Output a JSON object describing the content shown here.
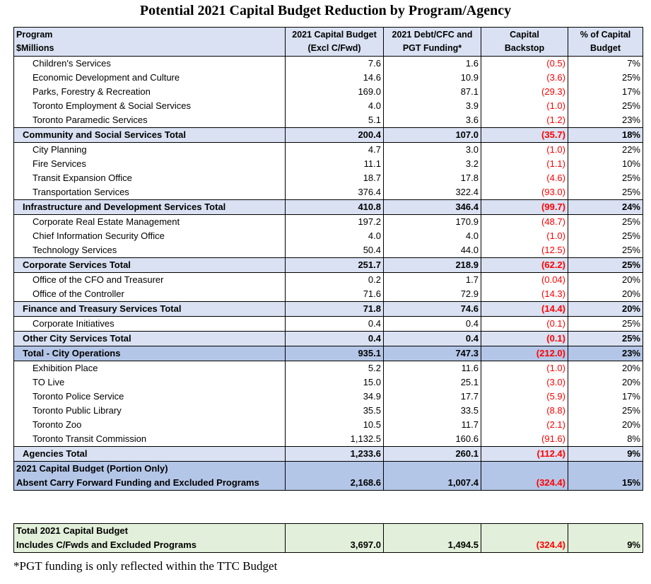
{
  "title": "Potential 2021 Capital Budget Reduction by Program/Agency",
  "headers": {
    "program_l1": "Program",
    "program_l2": "$Millions",
    "budget_l1": "2021 Capital Budget",
    "budget_l2": "(Excl C/Fwd)",
    "debt_l1": "2021 Debt/CFC and",
    "debt_l2": "PGT Funding*",
    "backstop_l1": "Capital",
    "backstop_l2": "Backstop",
    "pct_l1": "% of Capital",
    "pct_l2": "Budget"
  },
  "rows": [
    {
      "type": "item",
      "program": "Children's Services",
      "budget": "7.6",
      "debt": "1.6",
      "backstop": "(0.5)",
      "pct": "7%"
    },
    {
      "type": "item",
      "program": "Economic Development and Culture",
      "budget": "14.6",
      "debt": "10.9",
      "backstop": "(3.6)",
      "pct": "25%"
    },
    {
      "type": "item",
      "program": "Parks, Forestry & Recreation",
      "budget": "169.0",
      "debt": "87.1",
      "backstop": "(29.3)",
      "pct": "17%"
    },
    {
      "type": "item",
      "program": "Toronto Employment & Social Services",
      "budget": "4.0",
      "debt": "3.9",
      "backstop": "(1.0)",
      "pct": "25%"
    },
    {
      "type": "item",
      "program": "Toronto Paramedic Services",
      "budget": "5.1",
      "debt": "3.6",
      "backstop": "(1.2)",
      "pct": "23%"
    },
    {
      "type": "sub",
      "program": "Community and Social Services Total",
      "budget": "200.4",
      "debt": "107.0",
      "backstop": "(35.7)",
      "pct": "18%"
    },
    {
      "type": "item",
      "program": "City Planning",
      "budget": "4.7",
      "debt": "3.0",
      "backstop": "(1.0)",
      "pct": "22%"
    },
    {
      "type": "item",
      "program": "Fire Services",
      "budget": "11.1",
      "debt": "3.2",
      "backstop": "(1.1)",
      "pct": "10%"
    },
    {
      "type": "item",
      "program": "Transit Expansion Office",
      "budget": "18.7",
      "debt": "17.8",
      "backstop": "(4.6)",
      "pct": "25%"
    },
    {
      "type": "item",
      "program": "Transportation Services",
      "budget": "376.4",
      "debt": "322.4",
      "backstop": "(93.0)",
      "pct": "25%"
    },
    {
      "type": "sub",
      "program": "Infrastructure and Development Services Total",
      "budget": "410.8",
      "debt": "346.4",
      "backstop": "(99.7)",
      "pct": "24%"
    },
    {
      "type": "item",
      "program": "Corporate Real Estate Management",
      "budget": "197.2",
      "debt": "170.9",
      "backstop": "(48.7)",
      "pct": "25%"
    },
    {
      "type": "item",
      "program": "Chief Information Security Office",
      "budget": "4.0",
      "debt": "4.0",
      "backstop": "(1.0)",
      "pct": "25%"
    },
    {
      "type": "item",
      "program": "Technology Services",
      "budget": "50.4",
      "debt": "44.0",
      "backstop": "(12.5)",
      "pct": "25%"
    },
    {
      "type": "sub",
      "program": "Corporate Services Total",
      "budget": "251.7",
      "debt": "218.9",
      "backstop": "(62.2)",
      "pct": "25%"
    },
    {
      "type": "item",
      "program": "Office of the CFO and Treasurer",
      "budget": "0.2",
      "debt": "1.7",
      "backstop": "(0.04)",
      "pct": "20%"
    },
    {
      "type": "item",
      "program": "Office of the Controller",
      "budget": "71.6",
      "debt": "72.9",
      "backstop": "(14.3)",
      "pct": "20%"
    },
    {
      "type": "sub",
      "program": "Finance and Treasury Services Total",
      "budget": "71.8",
      "debt": "74.6",
      "backstop": "(14.4)",
      "pct": "20%"
    },
    {
      "type": "item",
      "program": "Corporate Initiatives",
      "budget": "0.4",
      "debt": "0.4",
      "backstop": "(0.1)",
      "pct": "25%"
    },
    {
      "type": "sub",
      "program": "Other City Services Total",
      "budget": "0.4",
      "debt": "0.4",
      "backstop": "(0.1)",
      "pct": "25%"
    },
    {
      "type": "grand",
      "program": "Total - City Operations",
      "budget": "935.1",
      "debt": "747.3",
      "backstop": "(212.0)",
      "pct": "23%"
    },
    {
      "type": "item",
      "program": "Exhibition Place",
      "budget": "5.2",
      "debt": "11.6",
      "backstop": "(1.0)",
      "pct": "20%"
    },
    {
      "type": "item",
      "program": "TO Live",
      "budget": "15.0",
      "debt": "25.1",
      "backstop": "(3.0)",
      "pct": "20%"
    },
    {
      "type": "item",
      "program": "Toronto Police Service",
      "budget": "34.9",
      "debt": "17.7",
      "backstop": "(5.9)",
      "pct": "17%"
    },
    {
      "type": "item",
      "program": "Toronto Public Library",
      "budget": "35.5",
      "debt": "33.5",
      "backstop": "(8.8)",
      "pct": "25%"
    },
    {
      "type": "item",
      "program": "Toronto Zoo",
      "budget": "10.5",
      "debt": "11.7",
      "backstop": "(2.1)",
      "pct": "20%"
    },
    {
      "type": "item",
      "program": "Toronto Transit Commission",
      "budget": "1,132.5",
      "debt": "160.6",
      "backstop": "(91.6)",
      "pct": "8%"
    },
    {
      "type": "sub",
      "program": "Agencies Total",
      "budget": "1,233.6",
      "debt": "260.1",
      "backstop": "(112.4)",
      "pct": "9%"
    }
  ],
  "portion": {
    "line1": "2021 Capital Budget (Portion Only)",
    "line2": "Absent Carry Forward Funding and Excluded Programs",
    "budget": "2,168.6",
    "debt": "1,007.4",
    "backstop": "(324.4)",
    "pct": "15%"
  },
  "total": {
    "line1": "Total 2021 Capital Budget",
    "line2": "Includes C/Fwds and Excluded Programs",
    "budget": "3,697.0",
    "debt": "1,494.5",
    "backstop": "(324.4)",
    "pct": "9%"
  },
  "footnote": "*PGT funding is only reflected within the TTC Budget",
  "colors": {
    "header_bg": "#d9e1f2",
    "subtotal_bg": "#d9e1f2",
    "grand_bg": "#b4c6e7",
    "total_bg": "#e2efda",
    "negative_text": "#ff0000"
  }
}
